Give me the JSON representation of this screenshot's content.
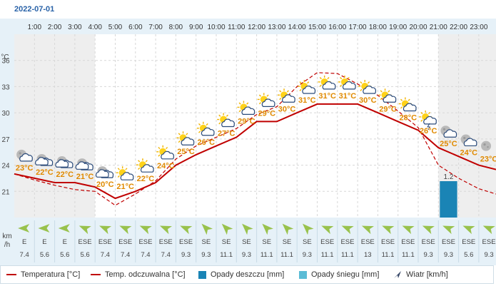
{
  "header": {
    "date": "2022-07-01"
  },
  "units": {
    "temp_axis": "°C",
    "wind_axis_line1": "km",
    "wind_axis_line2": "/h"
  },
  "colors": {
    "temperature": "#c00000",
    "feels_like": "#c00000",
    "rain": "#1a84b5",
    "snow": "#5bbcd6",
    "label_orange": "#e08a00",
    "wind_arrow": "#99c24d",
    "night_bg": "#eeeeee",
    "grid": "#d7d7d7"
  },
  "legend": {
    "temperature": "Temperatura [°C]",
    "feels_like": "Temp. odczuwalna [°C]",
    "rain": "Opady deszczu [mm]",
    "snow": "Opady śniegu [mm]",
    "wind": "Wiatr [km/h]"
  },
  "chart_data": {
    "type": "line",
    "title": "2022-07-01",
    "x_labels": [
      "1:00",
      "2:00",
      "3:00",
      "4:00",
      "5:00",
      "6:00",
      "7:00",
      "8:00",
      "9:00",
      "10:00",
      "11:00",
      "12:00",
      "13:00",
      "14:00",
      "15:00",
      "16:00",
      "17:00",
      "18:00",
      "19:00",
      "20:00",
      "21:00",
      "22:00",
      "23:00"
    ],
    "y_ticks": [
      21,
      24,
      27,
      30,
      33,
      36
    ],
    "ylim": [
      18,
      39
    ],
    "ylabel": "°C",
    "series": [
      {
        "name": "Temperatura [°C]",
        "style": "solid",
        "values": [
          23.0,
          22.5,
          22.0,
          22.0,
          21.5,
          20.2,
          21.0,
          22.0,
          24.0,
          25.2,
          26.2,
          27.2,
          29.0,
          29.0,
          30.0,
          31.0,
          31.0,
          31.0,
          30.0,
          29.0,
          28.0,
          26.0,
          25.0,
          24.0,
          23.5
        ]
      },
      {
        "name": "Temp. odczuwalna [°C]",
        "style": "dashed",
        "values": [
          23.0,
          22.3,
          21.7,
          21.2,
          21.0,
          19.4,
          20.7,
          22.2,
          24.7,
          26.2,
          27.2,
          28.2,
          29.8,
          30.7,
          33.0,
          34.6,
          34.5,
          33.3,
          32.0,
          30.2,
          28.3,
          24.0,
          22.5,
          21.3,
          20.7
        ]
      }
    ],
    "point_labels": [
      "23°C",
      "22°C",
      "22°C",
      "21°C",
      "20°C",
      "21°C",
      "22°C",
      "24°C",
      "25°C",
      "26°C",
      "27°C",
      "29°C",
      "29°C",
      "30°C",
      "31°C",
      "31°C",
      "31°C",
      "30°C",
      "29°C",
      "28°C",
      "26°C",
      "25°C",
      "24°C",
      "23°C"
    ],
    "weather_icons": [
      "night-partly-cloudy-icon",
      "night-cloudy-icon",
      "night-cloudy-icon",
      "night-cloudy-icon",
      "night-cloudy-icon",
      "partly-cloudy-icon",
      "partly-cloudy-icon",
      "partly-sunny-icon",
      "partly-sunny-icon",
      "partly-sunny-icon",
      "partly-sunny-icon",
      "sun-cloudy-icon",
      "sun-cloudy-icon",
      "sun-cloudy-icon",
      "sun-cloud-icon",
      "sun-cloud-icon",
      "sun-cloud-icon",
      "sun-cloud-icon",
      "sun-cloud-icon",
      "sun-cloud-icon",
      "sun-thunder-icon",
      "night-partly-cloudy-icon",
      "night-partly-cloudy-icon",
      "moon-icon"
    ],
    "rain": [
      {
        "hour_index": 21,
        "value": 1.2,
        "label": "1.2"
      }
    ],
    "wind_direction": [
      "E",
      "E",
      "E",
      "ESE",
      "ESE",
      "ESE",
      "ESE",
      "ESE",
      "ESE",
      "SE",
      "SE",
      "SE",
      "SE",
      "SE",
      "SE",
      "ESE",
      "ESE",
      "ESE",
      "ESE",
      "ESE",
      "ESE",
      "ESE",
      "ESE",
      "ESE"
    ],
    "wind_speed": [
      "7.4",
      "5.6",
      "5.6",
      "5.6",
      "7.4",
      "7.4",
      "7.4",
      "7.4",
      "9.3",
      "9.3",
      "11.1",
      "9.3",
      "11.1",
      "11.1",
      "9.3",
      "11.1",
      "11.1",
      "13",
      "11.1",
      "11.1",
      "9.3",
      "9.3",
      "5.6",
      "9.3"
    ]
  }
}
